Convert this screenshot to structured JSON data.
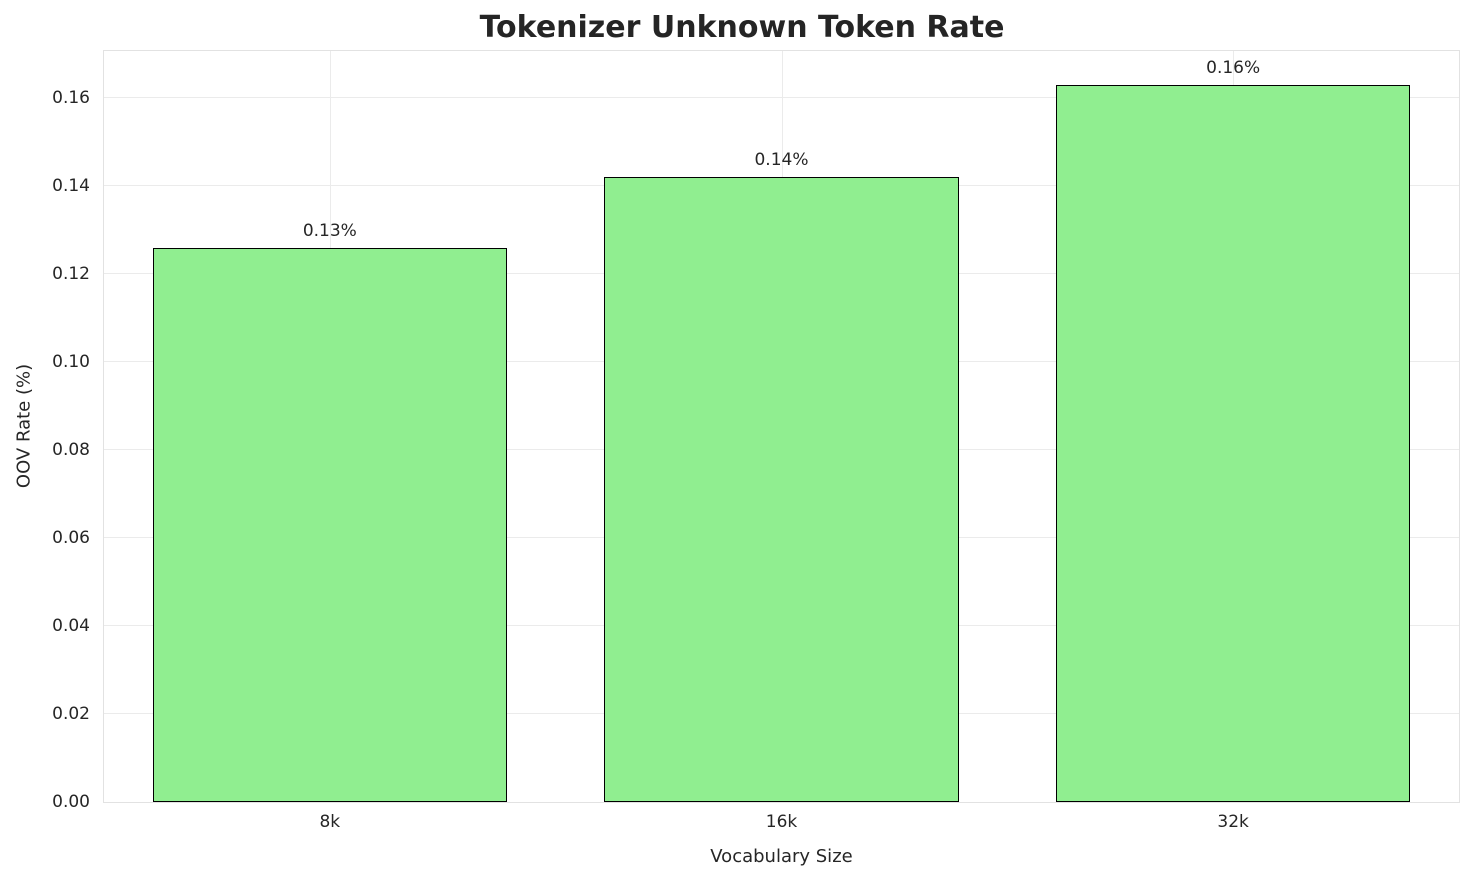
{
  "chart_data": {
    "type": "bar",
    "title": "Tokenizer Unknown Token Rate",
    "xlabel": "Vocabulary Size",
    "ylabel": "OOV Rate (%)",
    "categories": [
      "8k",
      "16k",
      "32k"
    ],
    "values": [
      0.126,
      0.142,
      0.163
    ],
    "bar_labels": [
      "0.13%",
      "0.14%",
      "0.16%"
    ],
    "ylim": [
      0,
      0.1707
    ],
    "yticks": [
      0.0,
      0.02,
      0.04,
      0.06,
      0.08,
      0.1,
      0.12,
      0.14,
      0.16
    ],
    "ytick_labels": [
      "0.00",
      "0.02",
      "0.04",
      "0.06",
      "0.08",
      "0.10",
      "0.12",
      "0.14",
      "0.16"
    ],
    "bar_color": "#90EE90",
    "bar_edge_color": "#000000",
    "bar_width_fraction": 0.785,
    "grid": true,
    "grid_color": "#ebebeb",
    "legend": "none"
  }
}
